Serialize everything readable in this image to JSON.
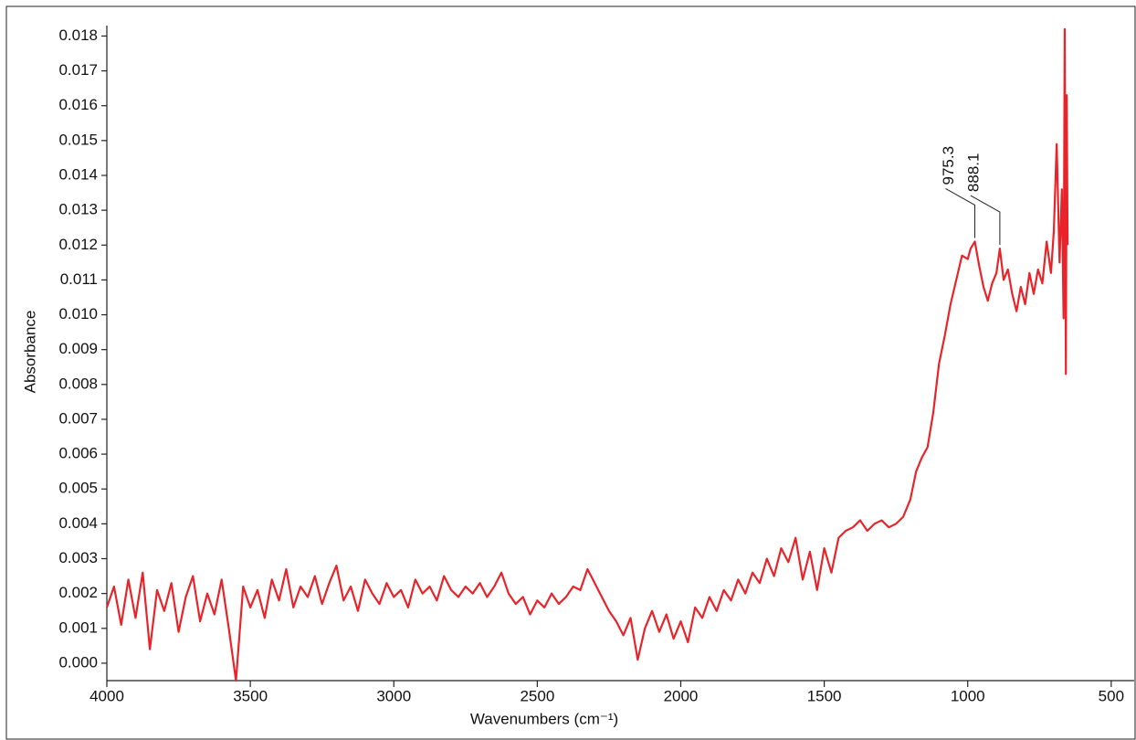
{
  "chart_data": {
    "type": "line",
    "xlabel": "Wavenumbers (cm⁻¹)",
    "ylabel": "Absorbance",
    "color": "#e8242a",
    "xlim": [
      4000,
      420
    ],
    "ylim": [
      -0.0005,
      0.0183
    ],
    "xticks": [
      4000,
      3500,
      3000,
      2500,
      2000,
      1500,
      1000,
      500
    ],
    "yticks": [
      {
        "value": 0,
        "label": "0.000"
      },
      {
        "value": 0.001,
        "label": "0.001"
      },
      {
        "value": 0.002,
        "label": "0.002"
      },
      {
        "value": 0.003,
        "label": "0.003"
      },
      {
        "value": 0.004,
        "label": "0.004"
      },
      {
        "value": 0.005,
        "label": "0.005"
      },
      {
        "value": 0.006,
        "label": "0.006"
      },
      {
        "value": 0.007,
        "label": "0.007"
      },
      {
        "value": 0.008,
        "label": "0.008"
      },
      {
        "value": 0.009,
        "label": "0.009"
      },
      {
        "value": 0.01,
        "label": "0.010"
      },
      {
        "value": 0.011,
        "label": "0.011"
      },
      {
        "value": 0.012,
        "label": "0.012"
      },
      {
        "value": 0.013,
        "label": "0.013"
      },
      {
        "value": 0.014,
        "label": "0.014"
      },
      {
        "value": 0.015,
        "label": "0.015"
      },
      {
        "value": 0.016,
        "label": "0.016"
      },
      {
        "value": 0.017,
        "label": "0.017"
      },
      {
        "value": 0.018,
        "label": "0.018"
      }
    ],
    "annotations": [
      {
        "text": "975.3",
        "x": 975.3,
        "y": 0.0121
      },
      {
        "text": "888.1",
        "x": 888.1,
        "y": 0.0119
      }
    ],
    "x": [
      4000,
      3975,
      3950,
      3925,
      3900,
      3875,
      3850,
      3825,
      3800,
      3775,
      3750,
      3725,
      3700,
      3675,
      3650,
      3625,
      3600,
      3575,
      3550,
      3525,
      3500,
      3475,
      3450,
      3425,
      3400,
      3375,
      3350,
      3325,
      3300,
      3275,
      3250,
      3225,
      3200,
      3175,
      3150,
      3125,
      3100,
      3075,
      3050,
      3025,
      3000,
      2975,
      2950,
      2925,
      2900,
      2875,
      2850,
      2825,
      2800,
      2775,
      2750,
      2725,
      2700,
      2675,
      2650,
      2625,
      2600,
      2575,
      2550,
      2525,
      2500,
      2475,
      2450,
      2425,
      2400,
      2375,
      2350,
      2325,
      2300,
      2275,
      2250,
      2225,
      2200,
      2175,
      2150,
      2125,
      2100,
      2075,
      2050,
      2025,
      2000,
      1975,
      1950,
      1925,
      1900,
      1875,
      1850,
      1825,
      1800,
      1775,
      1750,
      1725,
      1700,
      1675,
      1650,
      1625,
      1600,
      1575,
      1550,
      1525,
      1500,
      1475,
      1450,
      1425,
      1400,
      1375,
      1350,
      1325,
      1300,
      1275,
      1250,
      1225,
      1200,
      1180,
      1160,
      1140,
      1120,
      1100,
      1080,
      1060,
      1040,
      1020,
      1000,
      990,
      975.3,
      960,
      945,
      930,
      915,
      900,
      888.1,
      875,
      860,
      845,
      830,
      815,
      800,
      785,
      770,
      755,
      740,
      725,
      710,
      700,
      690,
      680,
      672,
      666,
      662,
      658,
      655,
      652
    ],
    "values": [
      0.0016,
      0.0022,
      0.0011,
      0.0024,
      0.0013,
      0.0026,
      0.0004,
      0.0021,
      0.0015,
      0.0023,
      0.0009,
      0.0019,
      0.0025,
      0.0012,
      0.002,
      0.0014,
      0.0024,
      0.001,
      -0.0005,
      0.0022,
      0.0016,
      0.0021,
      0.0013,
      0.0024,
      0.0018,
      0.0027,
      0.0016,
      0.0022,
      0.0019,
      0.0025,
      0.0017,
      0.0023,
      0.0028,
      0.0018,
      0.0022,
      0.0015,
      0.0024,
      0.002,
      0.0017,
      0.0023,
      0.0019,
      0.0021,
      0.0016,
      0.0024,
      0.002,
      0.0022,
      0.0018,
      0.0025,
      0.0021,
      0.0019,
      0.0022,
      0.002,
      0.0023,
      0.0019,
      0.0022,
      0.0026,
      0.002,
      0.0017,
      0.0019,
      0.0014,
      0.0018,
      0.0016,
      0.002,
      0.0017,
      0.0019,
      0.0022,
      0.0021,
      0.0027,
      0.0023,
      0.0019,
      0.0015,
      0.0012,
      0.0008,
      0.0013,
      0.0001,
      0.001,
      0.0015,
      0.0009,
      0.0014,
      0.0007,
      0.0012,
      0.0006,
      0.0016,
      0.0013,
      0.0019,
      0.0015,
      0.0021,
      0.0018,
      0.0024,
      0.002,
      0.0026,
      0.0023,
      0.003,
      0.0025,
      0.0033,
      0.0029,
      0.0036,
      0.0024,
      0.0032,
      0.0021,
      0.0033,
      0.0026,
      0.0036,
      0.0038,
      0.0039,
      0.0041,
      0.0038,
      0.004,
      0.0041,
      0.0039,
      0.004,
      0.0042,
      0.0047,
      0.0055,
      0.0059,
      0.0062,
      0.0072,
      0.0086,
      0.0094,
      0.0103,
      0.011,
      0.0117,
      0.0116,
      0.0119,
      0.0121,
      0.0114,
      0.0108,
      0.0104,
      0.0109,
      0.0112,
      0.0119,
      0.011,
      0.0113,
      0.0106,
      0.0101,
      0.0108,
      0.0103,
      0.0112,
      0.0106,
      0.0113,
      0.0109,
      0.0121,
      0.0112,
      0.0124,
      0.0149,
      0.0115,
      0.0136,
      0.0099,
      0.0182,
      0.0083,
      0.0163,
      0.012
    ]
  }
}
